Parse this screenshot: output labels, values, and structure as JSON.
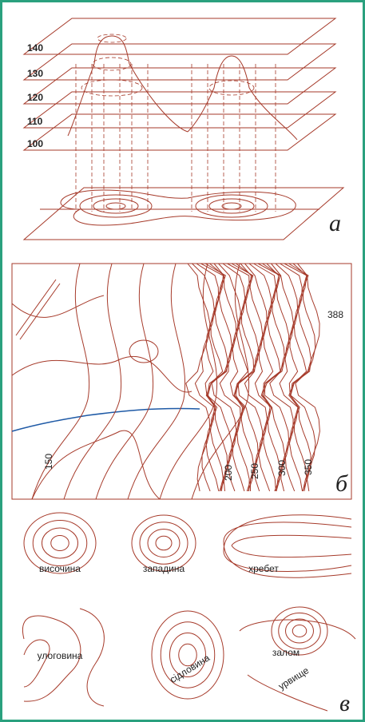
{
  "panel_a": {
    "levels": [
      140,
      130,
      120,
      110,
      100
    ],
    "letter": "а"
  },
  "panel_b": {
    "peak": 388,
    "contours": [
      150,
      200,
      250,
      300,
      350
    ],
    "letter": "б"
  },
  "panel_c": {
    "forms": [
      "височина",
      "западина",
      "хребет",
      "улоговина",
      "сідловина",
      "залом",
      "урвище"
    ],
    "letter": "в"
  }
}
